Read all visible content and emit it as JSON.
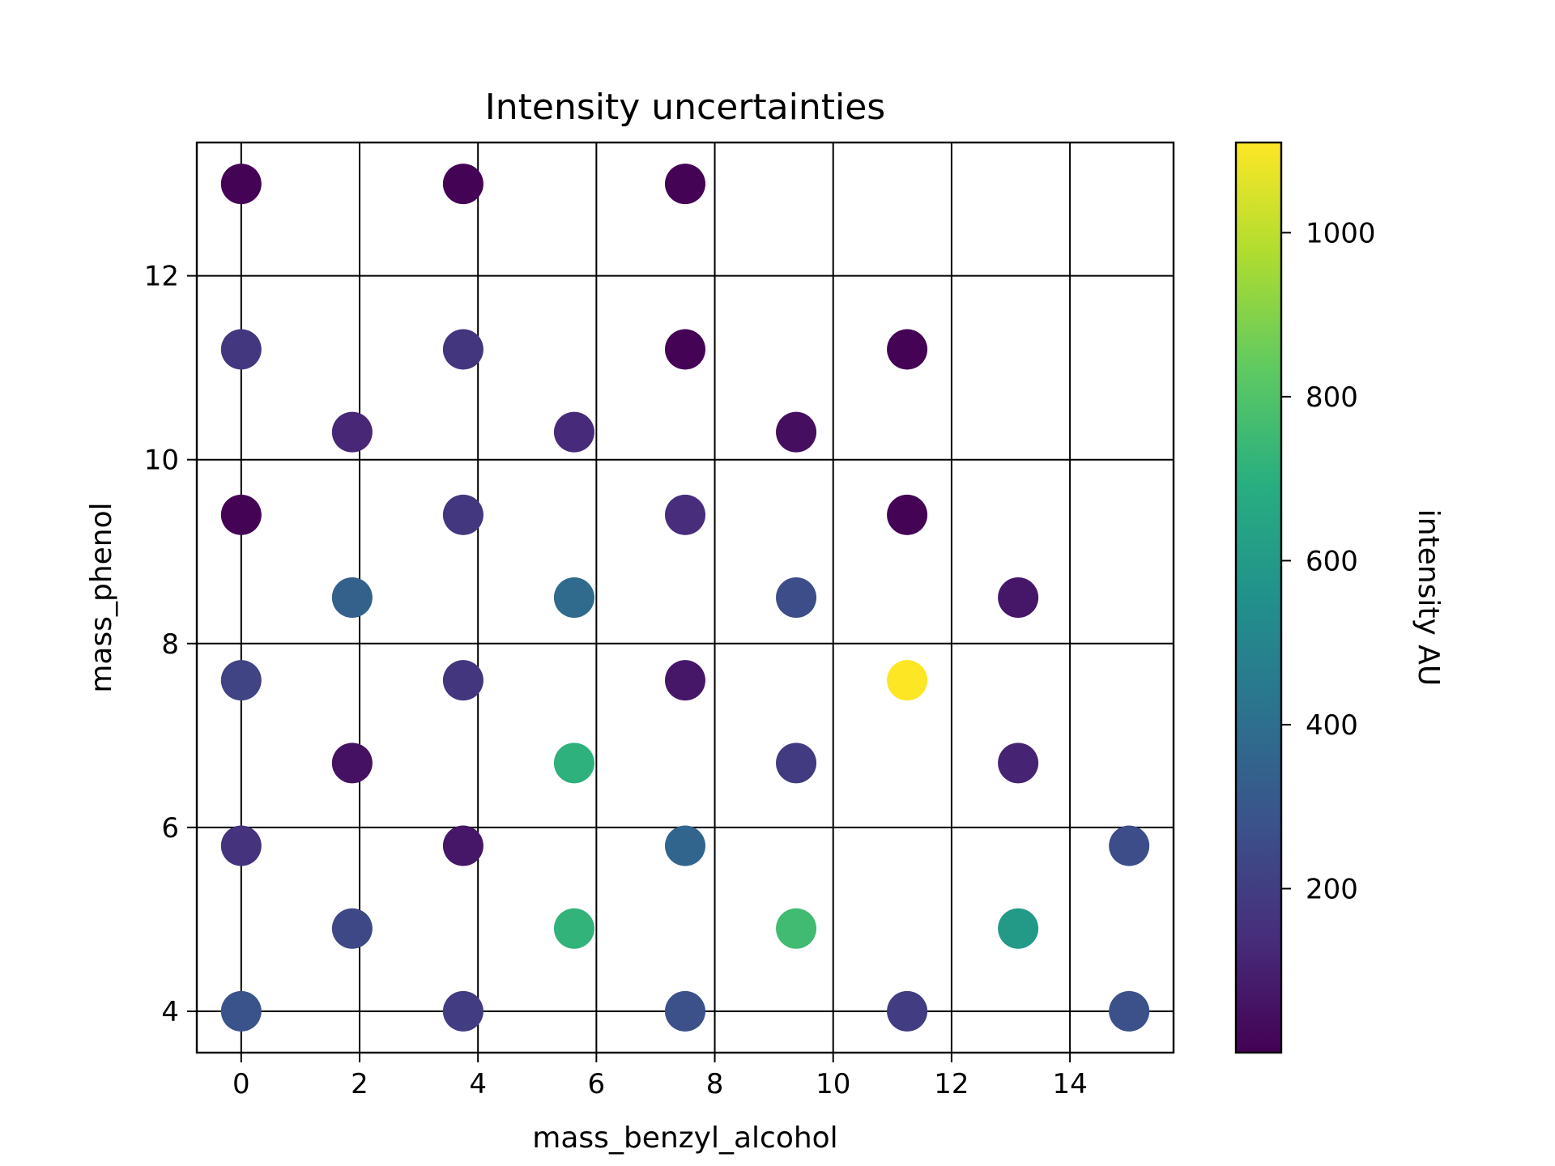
{
  "chart_data": {
    "type": "scatter",
    "title": "Intensity uncertainties",
    "xlabel": "mass_benzyl_alcohol",
    "ylabel": "mass_phenol",
    "xlim": [
      -0.75,
      15.75
    ],
    "ylim": [
      3.55,
      13.45
    ],
    "xticks": [
      0,
      2,
      4,
      6,
      8,
      10,
      12,
      14
    ],
    "yticks": [
      4,
      6,
      8,
      10,
      12
    ],
    "grid": true,
    "colorbar": {
      "label": "intensity AU",
      "colormap": "viridis",
      "range": [
        0,
        1110
      ],
      "ticks": [
        200,
        400,
        600,
        800,
        1000
      ]
    },
    "points": [
      {
        "x": 0,
        "y": 13.0,
        "value": 5
      },
      {
        "x": 3.75,
        "y": 13.0,
        "value": 5
      },
      {
        "x": 7.5,
        "y": 13.0,
        "value": 5
      },
      {
        "x": 0,
        "y": 11.2,
        "value": 180
      },
      {
        "x": 3.75,
        "y": 11.2,
        "value": 170
      },
      {
        "x": 7.5,
        "y": 11.2,
        "value": 5
      },
      {
        "x": 11.25,
        "y": 11.2,
        "value": 5
      },
      {
        "x": 1.875,
        "y": 10.3,
        "value": 120
      },
      {
        "x": 5.625,
        "y": 10.3,
        "value": 130
      },
      {
        "x": 9.375,
        "y": 10.3,
        "value": 40
      },
      {
        "x": 0,
        "y": 9.4,
        "value": 5
      },
      {
        "x": 3.75,
        "y": 9.4,
        "value": 180
      },
      {
        "x": 7.5,
        "y": 9.4,
        "value": 140
      },
      {
        "x": 11.25,
        "y": 9.4,
        "value": 5
      },
      {
        "x": 1.875,
        "y": 8.5,
        "value": 340
      },
      {
        "x": 5.625,
        "y": 8.5,
        "value": 380
      },
      {
        "x": 9.375,
        "y": 8.5,
        "value": 260
      },
      {
        "x": 13.125,
        "y": 8.5,
        "value": 70
      },
      {
        "x": 0,
        "y": 7.6,
        "value": 220
      },
      {
        "x": 3.75,
        "y": 7.6,
        "value": 170
      },
      {
        "x": 7.5,
        "y": 7.6,
        "value": 70
      },
      {
        "x": 11.25,
        "y": 7.6,
        "value": 1110
      },
      {
        "x": 1.875,
        "y": 6.7,
        "value": 50
      },
      {
        "x": 5.625,
        "y": 6.7,
        "value": 710
      },
      {
        "x": 9.375,
        "y": 6.7,
        "value": 190
      },
      {
        "x": 13.125,
        "y": 6.7,
        "value": 110
      },
      {
        "x": 0,
        "y": 5.8,
        "value": 160
      },
      {
        "x": 3.75,
        "y": 5.8,
        "value": 70
      },
      {
        "x": 7.5,
        "y": 5.8,
        "value": 360
      },
      {
        "x": 15.0,
        "y": 5.8,
        "value": 260
      },
      {
        "x": 1.875,
        "y": 4.9,
        "value": 240
      },
      {
        "x": 5.625,
        "y": 4.9,
        "value": 720
      },
      {
        "x": 9.375,
        "y": 4.9,
        "value": 760
      },
      {
        "x": 13.125,
        "y": 4.9,
        "value": 600
      },
      {
        "x": 0,
        "y": 4.0,
        "value": 280
      },
      {
        "x": 3.75,
        "y": 4.0,
        "value": 200
      },
      {
        "x": 7.5,
        "y": 4.0,
        "value": 270
      },
      {
        "x": 11.25,
        "y": 4.0,
        "value": 200
      },
      {
        "x": 15.0,
        "y": 4.0,
        "value": 270
      }
    ]
  }
}
